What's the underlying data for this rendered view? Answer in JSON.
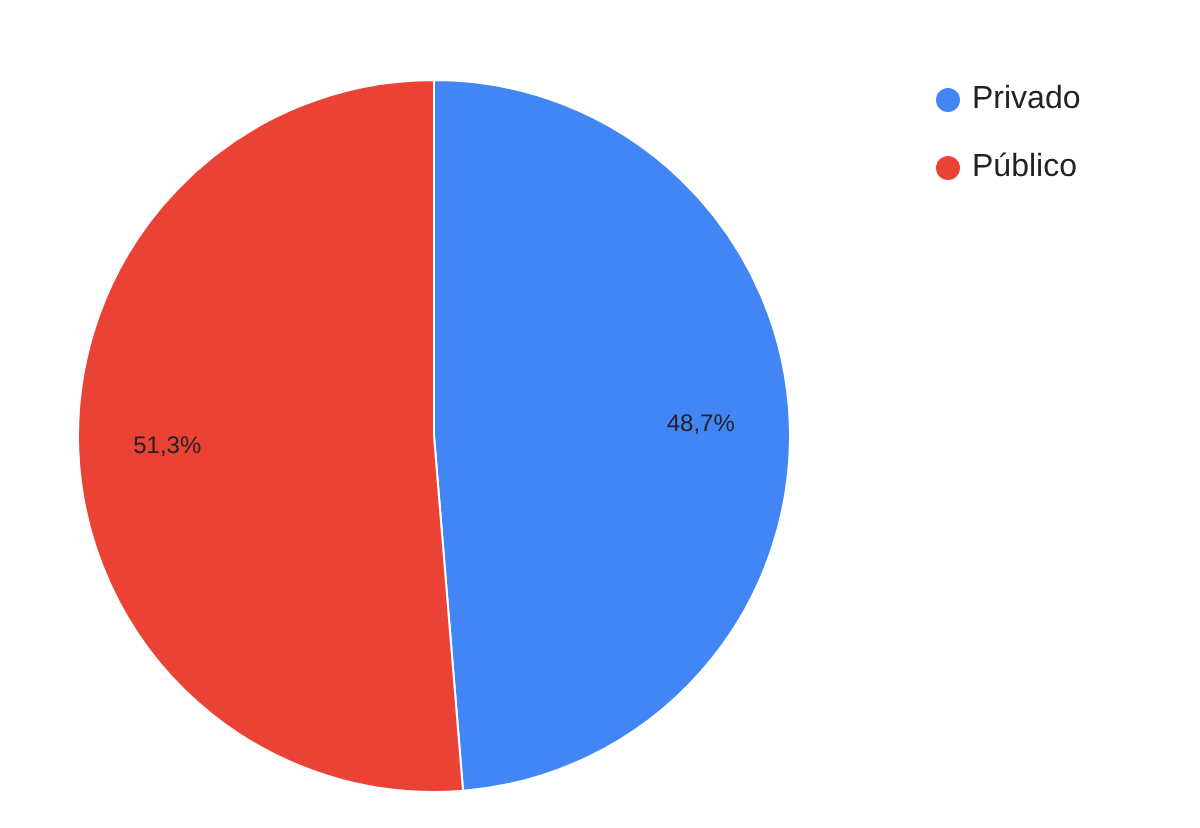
{
  "chart_data": {
    "type": "pie",
    "categories": [
      "Privado",
      "Público"
    ],
    "values": [
      48.7,
      51.3
    ],
    "colors": [
      "#4285f4",
      "#ea4335"
    ],
    "value_labels": [
      "48,7%",
      "51,3%"
    ],
    "legend": "top right"
  }
}
